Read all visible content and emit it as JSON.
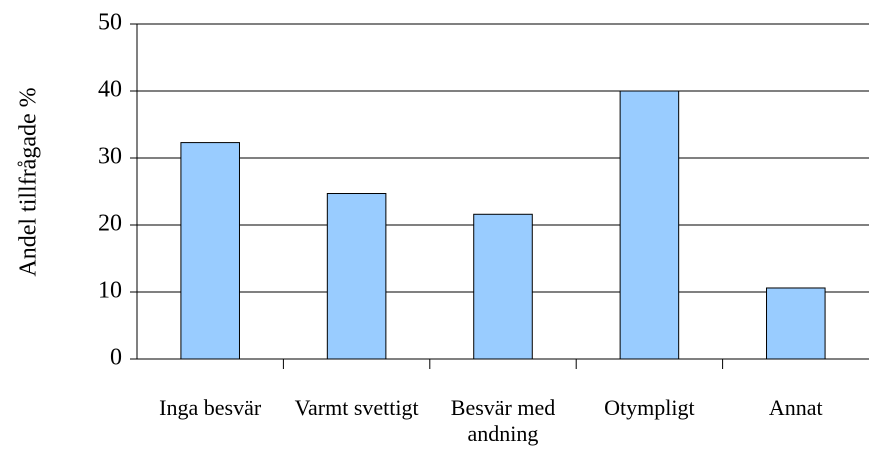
{
  "chart_data": {
    "type": "bar",
    "y_label": "Andel tillfrågade %",
    "categories": [
      "Inga besvär",
      "Varmt svettigt",
      "Besvär med andning",
      "Otympligt",
      "Annat"
    ],
    "values": [
      32.3,
      24.7,
      21.6,
      40,
      10.6
    ],
    "color": "#99ccff",
    "ylim": [
      0,
      50
    ],
    "yticks": [
      0,
      10,
      20,
      30,
      40,
      50
    ],
    "grid": true
  }
}
